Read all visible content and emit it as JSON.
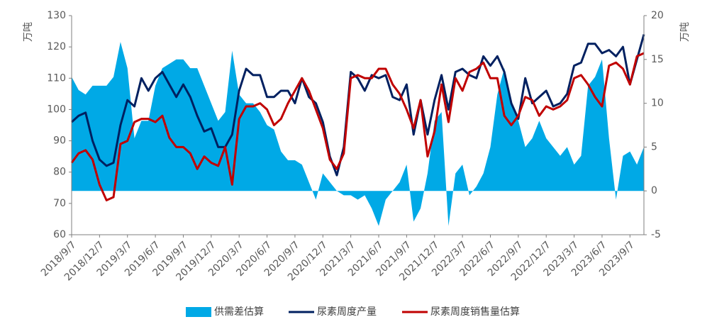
{
  "chart_data": {
    "type": "line",
    "categories": [
      "2018/9/7",
      null,
      null,
      null,
      "2018/12/7",
      null,
      null,
      null,
      "2019/3/7",
      null,
      null,
      null,
      "2019/6/7",
      null,
      null,
      null,
      "2019/9/7",
      null,
      null,
      null,
      "2019/12/7",
      null,
      null,
      null,
      "2020/3/7",
      null,
      null,
      null,
      "2020/6/7",
      null,
      null,
      null,
      "2020/9/7",
      null,
      null,
      null,
      "2020/12/7",
      null,
      null,
      null,
      "2021/3/7",
      null,
      null,
      null,
      "2021/6/7",
      null,
      null,
      null,
      "2021/9/7",
      null,
      null,
      null,
      "2021/12/7",
      null,
      null,
      null,
      "2022/3/7",
      null,
      null,
      null,
      "2022/6/7",
      null,
      null,
      null,
      "2022/9/7",
      null,
      null,
      null,
      "2022/12/7",
      null,
      null,
      null,
      "2023/3/7",
      null,
      null,
      null,
      "2023/6/7",
      null,
      null,
      null,
      "2023/9/7",
      null,
      null
    ],
    "series": [
      {
        "name": "供需差估算",
        "type": "area",
        "axis": "y2",
        "color": "#00a9e6",
        "values": [
          13,
          11.5,
          11,
          12,
          12,
          12,
          13,
          17,
          14,
          6,
          8,
          8,
          12,
          14,
          14.5,
          15,
          15,
          14,
          14,
          12,
          10,
          8,
          9,
          16,
          11,
          10,
          10,
          9,
          7.5,
          7,
          4.5,
          3.5,
          3.5,
          3,
          1,
          -1,
          2,
          1,
          0,
          -0.5,
          -0.5,
          -1,
          -0.5,
          -2,
          -4,
          -1,
          0,
          1,
          3,
          -3.5,
          -2,
          2,
          8,
          9,
          -4,
          2,
          3,
          -0.5,
          0.5,
          2,
          5,
          11,
          14,
          10,
          8,
          5,
          6,
          8,
          6,
          5,
          4,
          5,
          3,
          4,
          12,
          13,
          15,
          6,
          -1,
          4,
          4.5,
          3,
          5
        ]
      },
      {
        "name": "尿素周度产量",
        "type": "line",
        "color": "#002060",
        "values": [
          96,
          98,
          99,
          90,
          84,
          82,
          83,
          95,
          103,
          101,
          110,
          106,
          110,
          112,
          108,
          104,
          108,
          104,
          98,
          93,
          94,
          88,
          88,
          92,
          106,
          113,
          111,
          111,
          104,
          104,
          106,
          106,
          102,
          110,
          104,
          102,
          96,
          85,
          79,
          88,
          112,
          110,
          106,
          111,
          110,
          111,
          104,
          103,
          108,
          92,
          103,
          92,
          103,
          111,
          100,
          112,
          113,
          111,
          110,
          117,
          114,
          117,
          112,
          102,
          97,
          110,
          102,
          104,
          106,
          101,
          102,
          105,
          114,
          115,
          121,
          121,
          118,
          119,
          117,
          120,
          108,
          116,
          124
        ]
      },
      {
        "name": "尿素周度销售量估算",
        "type": "line",
        "color": "#c00000",
        "values": [
          83,
          86,
          87,
          84,
          76,
          71,
          72,
          89,
          90,
          96,
          97,
          97,
          96,
          98,
          91,
          88,
          88,
          86,
          81,
          85,
          83,
          82,
          88,
          76,
          97,
          101,
          101,
          102,
          100,
          95,
          97,
          102,
          106,
          110,
          106,
          100,
          94,
          84,
          81,
          86,
          110,
          111,
          110,
          110,
          113,
          113,
          108,
          105,
          100,
          94,
          103,
          85,
          93,
          108,
          96,
          110,
          106,
          112,
          113,
          115,
          110,
          110,
          98,
          95,
          98,
          104,
          103,
          98,
          101,
          100,
          101,
          103,
          110,
          111,
          108,
          104,
          101,
          114,
          115,
          113,
          108,
          117,
          118
        ]
      }
    ],
    "ylim": [
      60,
      130
    ],
    "yticks": [
      60,
      70,
      80,
      90,
      100,
      110,
      120,
      130
    ],
    "y2lim": [
      -5,
      20
    ],
    "y2ticks": [
      -5,
      0,
      5,
      10,
      15,
      20
    ],
    "ylabel": "万吨",
    "y2label": "万吨",
    "legend": "bottom"
  }
}
